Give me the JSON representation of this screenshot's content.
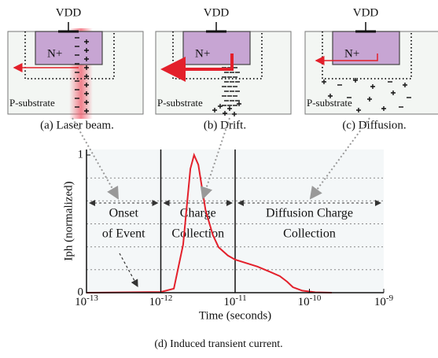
{
  "panels": [
    {
      "supply": "VDD",
      "diffusion": "N+",
      "substrate": "P-substrate",
      "caption": "(a) Laser beam."
    },
    {
      "supply": "VDD",
      "diffusion": "N+",
      "substrate": "P-substrate",
      "caption": "(b) Drift."
    },
    {
      "supply": "VDD",
      "diffusion": "N+",
      "substrate": "P-substrate",
      "caption": "(c) Diffusion."
    }
  ],
  "chart_data": {
    "type": "line",
    "xlabel": "Time (seconds)",
    "ylabel": "Iph (normalized)",
    "xscale": "log",
    "xlim": [
      1e-13,
      1e-09
    ],
    "xticks": [
      {
        "value": 1e-13,
        "label": "10",
        "exponent": "-13"
      },
      {
        "value": 1e-12,
        "label": "10",
        "exponent": "-12"
      },
      {
        "value": 1e-11,
        "label": "10",
        "exponent": "-11"
      },
      {
        "value": 1e-10,
        "label": "10",
        "exponent": "-10"
      },
      {
        "value": 1e-09,
        "label": "10",
        "exponent": "-9"
      }
    ],
    "ylim": [
      0,
      1.04
    ],
    "yticks": [
      0,
      1
    ],
    "ygrid": [
      0.167,
      0.333,
      0.5,
      0.667,
      0.833
    ],
    "x": [
      1e-13,
      1e-12,
      1.5e-12,
      2e-12,
      2.5e-12,
      2.8e-12,
      3.2e-12,
      4e-12,
      5e-12,
      6e-12,
      8e-12,
      1e-11,
      2e-11,
      3e-11,
      4e-11,
      5e-11,
      6e-11,
      8e-11,
      1.2e-10,
      2e-10
    ],
    "series": [
      {
        "color": "#e3202b",
        "values": [
          0,
          0.005,
          0.03,
          0.35,
          0.9,
          1.0,
          0.93,
          0.6,
          0.42,
          0.33,
          0.27,
          0.24,
          0.19,
          0.15,
          0.12,
          0.08,
          0.04,
          0.015,
          0.003,
          0
        ]
      }
    ],
    "regions": [
      {
        "label": [
          "Onset",
          "of Event"
        ],
        "from": 1e-13,
        "to": 1e-12
      },
      {
        "label": [
          "Charge",
          "Collection"
        ],
        "from": 1e-12,
        "to": 1e-11
      },
      {
        "label": [
          "Diffusion Charge",
          "Collection"
        ],
        "from": 1e-11,
        "to": 1e-09
      }
    ]
  },
  "caption": "(d) Induced transient current."
}
